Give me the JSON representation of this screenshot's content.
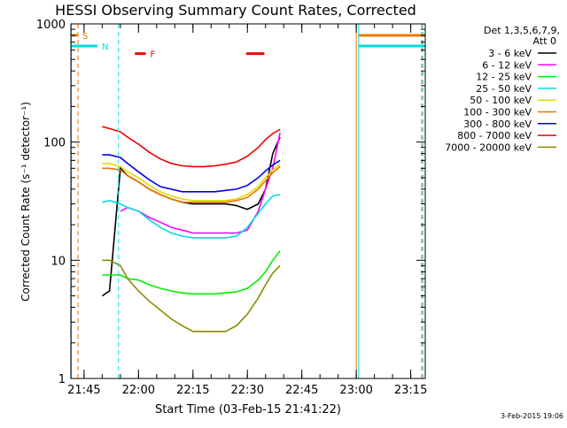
{
  "chart_data": {
    "type": "line",
    "title": "HESSI Observing Summary Count Rates, Corrected",
    "xlabel": "Start Time (03-Feb-15 21:41:22)",
    "ylabel": "Corrected Count Rate (s⁻¹ detector⁻¹)",
    "y_scale": "log",
    "ylim": [
      1,
      1000
    ],
    "xlim": [
      "21:41:22",
      "23:19:00"
    ],
    "x_ticks": [
      "21:45",
      "22:00",
      "22:15",
      "22:30",
      "22:45",
      "23:00",
      "23:15"
    ],
    "y_ticks": [
      "1",
      "10",
      "100",
      "1000"
    ],
    "grid": false,
    "date_stamp": "3-Feb-2015 19:06",
    "legend": {
      "placement": "right, outside plot",
      "header": [
        "Det 1,3,5,6,7,9,",
        "Att 0"
      ]
    },
    "flags": [
      {
        "label": "S",
        "color": "#ee7700",
        "start": "21:41:22",
        "end": "21:43:20",
        "level": 800
      },
      {
        "label": "N",
        "color": "#00dddd",
        "start": "21:41:22",
        "end": "21:48:40",
        "level": 650
      },
      {
        "label": "F",
        "color": "#ee0000",
        "start": "21:59:00",
        "end": "22:02:00",
        "level": 560
      },
      {
        "label": "",
        "color": "#ee0000",
        "start": "22:29:40",
        "end": "22:34:40",
        "level": 560
      },
      {
        "label": "",
        "color": "#ee7700",
        "start": "23:00:40",
        "end": "23:19:00",
        "level": 800
      },
      {
        "label": "",
        "color": "#00dddd",
        "start": "23:00:40",
        "end": "23:19:00",
        "level": 650
      }
    ],
    "vertical_markers": [
      {
        "time": "21:41:30",
        "color": "#00dddd",
        "style": "solid"
      },
      {
        "time": "21:43:20",
        "color": "#ee7700",
        "style": "dashed"
      },
      {
        "time": "21:54:30",
        "color": "#00dddd",
        "style": "dashed"
      },
      {
        "time": "23:00:00",
        "color": "#ee7700",
        "style": "solid"
      },
      {
        "time": "23:00:40",
        "color": "#00dddd",
        "style": "solid"
      },
      {
        "time": "23:18:00",
        "color": "#ee7700",
        "style": "dashed"
      },
      {
        "time": "23:18:20",
        "color": "#00dddd",
        "style": "dashed"
      }
    ],
    "x": [
      "21:50:00",
      "21:52:00",
      "21:55:00",
      "21:57:00",
      "22:00:00",
      "22:03:00",
      "22:06:00",
      "22:09:00",
      "22:12:00",
      "22:15:00",
      "22:18:00",
      "22:21:00",
      "22:24:00",
      "22:27:00",
      "22:30:00",
      "22:33:00",
      "22:35:00",
      "22:37:00",
      "22:39:00"
    ],
    "series": [
      {
        "name": "3 - 6 keV",
        "color": "#000000",
        "values": [
          5.0,
          5.5,
          60,
          52,
          46,
          40,
          36,
          33,
          31,
          30,
          30,
          30,
          30,
          29,
          27,
          30,
          40,
          80,
          110
        ]
      },
      {
        "name": "6 - 12 keV",
        "color": "#ff00ff",
        "values": [
          null,
          null,
          26,
          28,
          26,
          23,
          21,
          19,
          18,
          17,
          17,
          17,
          17,
          17,
          18,
          26,
          40,
          60,
          120
        ]
      },
      {
        "name": "12 - 25 keV",
        "color": "#00ee00",
        "values": [
          7.5,
          7.5,
          7.5,
          7.0,
          6.8,
          6.2,
          5.8,
          5.5,
          5.3,
          5.2,
          5.2,
          5.2,
          5.3,
          5.4,
          5.8,
          6.8,
          8.0,
          10,
          12
        ]
      },
      {
        "name": "25 - 50 keV",
        "color": "#00dddd",
        "values": [
          31,
          32,
          30,
          28,
          26,
          22,
          19,
          17,
          16,
          15.5,
          15.5,
          15.5,
          15.5,
          16,
          19,
          25,
          30,
          35,
          36
        ]
      },
      {
        "name": "50 - 100 keV",
        "color": "#dddd00",
        "values": [
          66,
          66,
          62,
          56,
          50,
          43,
          38,
          35,
          33,
          32,
          32,
          32,
          32,
          33,
          36,
          42,
          50,
          58,
          65
        ]
      },
      {
        "name": "100 - 300 keV",
        "color": "#ee7700",
        "values": [
          60,
          60,
          58,
          52,
          46,
          40,
          36,
          33,
          31,
          31,
          31,
          31,
          31,
          32,
          34,
          40,
          47,
          55,
          62
        ]
      },
      {
        "name": "300 - 800 keV",
        "color": "#0000ee",
        "values": [
          78,
          78,
          74,
          66,
          56,
          48,
          42,
          40,
          38,
          38,
          38,
          38,
          39,
          40,
          43,
          50,
          57,
          64,
          70
        ]
      },
      {
        "name": "800 - 7000 keV",
        "color": "#ee0000",
        "values": [
          135,
          130,
          122,
          110,
          96,
          82,
          72,
          66,
          63,
          62,
          62,
          63,
          65,
          68,
          76,
          90,
          105,
          118,
          128
        ]
      },
      {
        "name": "7000 - 20000 keV",
        "color": "#8b8b00",
        "values": [
          10,
          10,
          9,
          7,
          5.5,
          4.5,
          3.8,
          3.2,
          2.8,
          2.5,
          2.5,
          2.5,
          2.5,
          2.8,
          3.5,
          4.8,
          6.2,
          7.8,
          9
        ]
      }
    ]
  }
}
